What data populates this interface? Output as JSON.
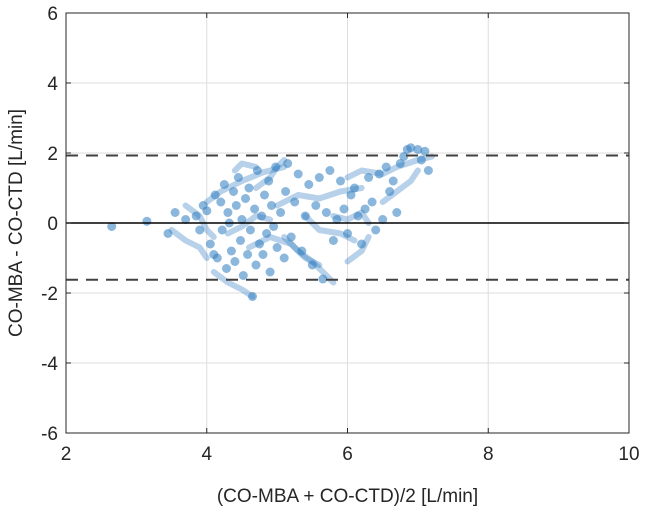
{
  "chart_data": {
    "type": "scatter",
    "title": "",
    "xlabel": "(CO-MBA + CO-CTD)/2 [L/min]",
    "ylabel": "CO-MBA - CO-CTD [L/min]",
    "xlim": [
      2,
      10
    ],
    "ylim": [
      -6,
      6
    ],
    "xticks": [
      "2",
      "4",
      "6",
      "8",
      "10"
    ],
    "yticks": [
      "-6",
      "-4",
      "-2",
      "0",
      "2",
      "4",
      "6"
    ],
    "xtick_values": [
      2,
      4,
      6,
      8,
      10
    ],
    "ytick_values": [
      -6,
      -4,
      -2,
      0,
      2,
      4,
      6
    ],
    "grid": true,
    "point_color": "#2e7bbf",
    "reference_lines": [
      {
        "y": 1.93,
        "style": "dashed"
      },
      {
        "y": 0.0,
        "style": "solid"
      },
      {
        "y": -1.62,
        "style": "dashed"
      }
    ],
    "points": [
      {
        "x": 2.65,
        "y": -0.1
      },
      {
        "x": 3.15,
        "y": 0.05
      },
      {
        "x": 3.45,
        "y": -0.3
      },
      {
        "x": 3.55,
        "y": 0.3
      },
      {
        "x": 3.7,
        "y": 0.1
      },
      {
        "x": 3.85,
        "y": 0.2
      },
      {
        "x": 3.9,
        "y": -0.2
      },
      {
        "x": 3.95,
        "y": 0.5
      },
      {
        "x": 4.0,
        "y": 0.35
      },
      {
        "x": 4.05,
        "y": -0.6
      },
      {
        "x": 4.1,
        "y": -0.9
      },
      {
        "x": 4.12,
        "y": 0.8
      },
      {
        "x": 4.15,
        "y": -1.0
      },
      {
        "x": 4.2,
        "y": 0.6
      },
      {
        "x": 4.22,
        "y": -0.2
      },
      {
        "x": 4.25,
        "y": 1.1
      },
      {
        "x": 4.28,
        "y": -1.3
      },
      {
        "x": 4.3,
        "y": 0.3
      },
      {
        "x": 4.32,
        "y": 0.0
      },
      {
        "x": 4.35,
        "y": -0.8
      },
      {
        "x": 4.38,
        "y": 0.9
      },
      {
        "x": 4.4,
        "y": -1.1
      },
      {
        "x": 4.42,
        "y": 0.5
      },
      {
        "x": 4.45,
        "y": 1.3
      },
      {
        "x": 4.48,
        "y": -0.5
      },
      {
        "x": 4.5,
        "y": 0.1
      },
      {
        "x": 4.52,
        "y": -1.5
      },
      {
        "x": 4.55,
        "y": 0.7
      },
      {
        "x": 4.58,
        "y": -0.9
      },
      {
        "x": 4.6,
        "y": 1.0
      },
      {
        "x": 4.62,
        "y": -0.2
      },
      {
        "x": 4.65,
        "y": -2.1
      },
      {
        "x": 4.68,
        "y": 0.4
      },
      {
        "x": 4.7,
        "y": -1.2
      },
      {
        "x": 4.72,
        "y": 1.5
      },
      {
        "x": 4.75,
        "y": -0.6
      },
      {
        "x": 4.78,
        "y": 0.2
      },
      {
        "x": 4.8,
        "y": -0.9
      },
      {
        "x": 4.82,
        "y": 0.8
      },
      {
        "x": 4.85,
        "y": -0.3
      },
      {
        "x": 4.88,
        "y": 1.2
      },
      {
        "x": 4.9,
        "y": -1.4
      },
      {
        "x": 4.92,
        "y": 0.5
      },
      {
        "x": 4.95,
        "y": -0.1
      },
      {
        "x": 4.98,
        "y": 1.6
      },
      {
        "x": 5.0,
        "y": -0.7
      },
      {
        "x": 5.05,
        "y": 0.3
      },
      {
        "x": 5.1,
        "y": -1.0
      },
      {
        "x": 5.12,
        "y": 0.9
      },
      {
        "x": 5.15,
        "y": 1.7
      },
      {
        "x": 5.2,
        "y": -0.4
      },
      {
        "x": 5.25,
        "y": 0.6
      },
      {
        "x": 5.3,
        "y": 1.4
      },
      {
        "x": 5.35,
        "y": -0.8
      },
      {
        "x": 5.4,
        "y": 0.2
      },
      {
        "x": 5.45,
        "y": 1.1
      },
      {
        "x": 5.5,
        "y": -1.2
      },
      {
        "x": 5.55,
        "y": 0.5
      },
      {
        "x": 5.6,
        "y": 1.3
      },
      {
        "x": 5.65,
        "y": -1.6
      },
      {
        "x": 5.7,
        "y": 0.3
      },
      {
        "x": 5.75,
        "y": 1.5
      },
      {
        "x": 5.8,
        "y": -0.5
      },
      {
        "x": 5.85,
        "y": 0.1
      },
      {
        "x": 5.9,
        "y": 1.2
      },
      {
        "x": 5.95,
        "y": 0.4
      },
      {
        "x": 6.0,
        "y": -0.3
      },
      {
        "x": 6.05,
        "y": 0.8
      },
      {
        "x": 6.1,
        "y": 1.0
      },
      {
        "x": 6.15,
        "y": 0.2
      },
      {
        "x": 6.2,
        "y": -0.6
      },
      {
        "x": 6.25,
        "y": 0.4
      },
      {
        "x": 6.3,
        "y": 1.3
      },
      {
        "x": 6.35,
        "y": 0.6
      },
      {
        "x": 6.4,
        "y": -0.2
      },
      {
        "x": 6.45,
        "y": 1.4
      },
      {
        "x": 6.5,
        "y": 0.1
      },
      {
        "x": 6.55,
        "y": 1.6
      },
      {
        "x": 6.6,
        "y": 0.9
      },
      {
        "x": 6.65,
        "y": 1.2
      },
      {
        "x": 6.7,
        "y": 0.3
      },
      {
        "x": 6.75,
        "y": 1.7
      },
      {
        "x": 6.8,
        "y": 1.9
      },
      {
        "x": 6.85,
        "y": 2.1
      },
      {
        "x": 6.9,
        "y": 2.15
      },
      {
        "x": 7.0,
        "y": 2.1
      },
      {
        "x": 7.05,
        "y": 1.8
      },
      {
        "x": 7.1,
        "y": 2.05
      },
      {
        "x": 7.15,
        "y": 1.5
      }
    ],
    "trails": [
      [
        [
          4.0,
          0.6
        ],
        [
          4.2,
          0.9
        ],
        [
          4.5,
          1.2
        ],
        [
          4.8,
          1.45
        ],
        [
          5.1,
          1.6
        ]
      ],
      [
        [
          4.7,
          1.0
        ],
        [
          4.9,
          1.3
        ],
        [
          5.0,
          1.6
        ],
        [
          5.1,
          1.8
        ]
      ],
      [
        [
          5.1,
          -0.4
        ],
        [
          5.3,
          -0.8
        ],
        [
          5.5,
          -1.1
        ],
        [
          5.7,
          -1.5
        ],
        [
          5.8,
          -1.7
        ]
      ],
      [
        [
          4.6,
          -0.7
        ],
        [
          4.9,
          -0.4
        ],
        [
          5.2,
          -0.6
        ],
        [
          5.4,
          -1.0
        ],
        [
          5.6,
          -1.2
        ]
      ],
      [
        [
          3.7,
          0.5
        ],
        [
          3.9,
          0.2
        ],
        [
          4.0,
          -0.2
        ],
        [
          4.1,
          -0.4
        ]
      ],
      [
        [
          5.0,
          0.5
        ],
        [
          5.3,
          0.8
        ],
        [
          5.6,
          0.7
        ],
        [
          5.9,
          0.9
        ],
        [
          6.2,
          1.0
        ]
      ],
      [
        [
          5.8,
          0.2
        ],
        [
          6.0,
          0.1
        ],
        [
          6.2,
          0.3
        ],
        [
          6.3,
          0.0
        ]
      ],
      [
        [
          6.0,
          1.3
        ],
        [
          6.2,
          1.5
        ],
        [
          6.5,
          1.4
        ],
        [
          6.7,
          1.6
        ],
        [
          7.0,
          1.8
        ],
        [
          7.2,
          1.9
        ]
      ],
      [
        [
          6.3,
          -0.4
        ],
        [
          6.2,
          -0.8
        ],
        [
          6.0,
          -1.1
        ]
      ],
      [
        [
          4.3,
          -0.3
        ],
        [
          4.5,
          -0.1
        ],
        [
          4.7,
          0.2
        ],
        [
          4.9,
          0.1
        ]
      ],
      [
        [
          4.4,
          1.5
        ],
        [
          4.5,
          1.7
        ],
        [
          4.7,
          1.6
        ]
      ],
      [
        [
          4.1,
          -1.4
        ],
        [
          4.3,
          -1.7
        ],
        [
          4.5,
          -1.9
        ],
        [
          4.65,
          -2.1
        ]
      ],
      [
        [
          3.5,
          -0.2
        ],
        [
          3.7,
          -0.5
        ],
        [
          3.9,
          -0.7
        ],
        [
          4.0,
          -1.0
        ]
      ],
      [
        [
          5.4,
          0.2
        ],
        [
          5.6,
          -0.2
        ],
        [
          5.9,
          -0.3
        ],
        [
          6.1,
          -0.5
        ]
      ],
      [
        [
          6.5,
          0.6
        ],
        [
          6.7,
          0.9
        ],
        [
          6.9,
          1.2
        ],
        [
          7.0,
          1.5
        ]
      ]
    ]
  }
}
